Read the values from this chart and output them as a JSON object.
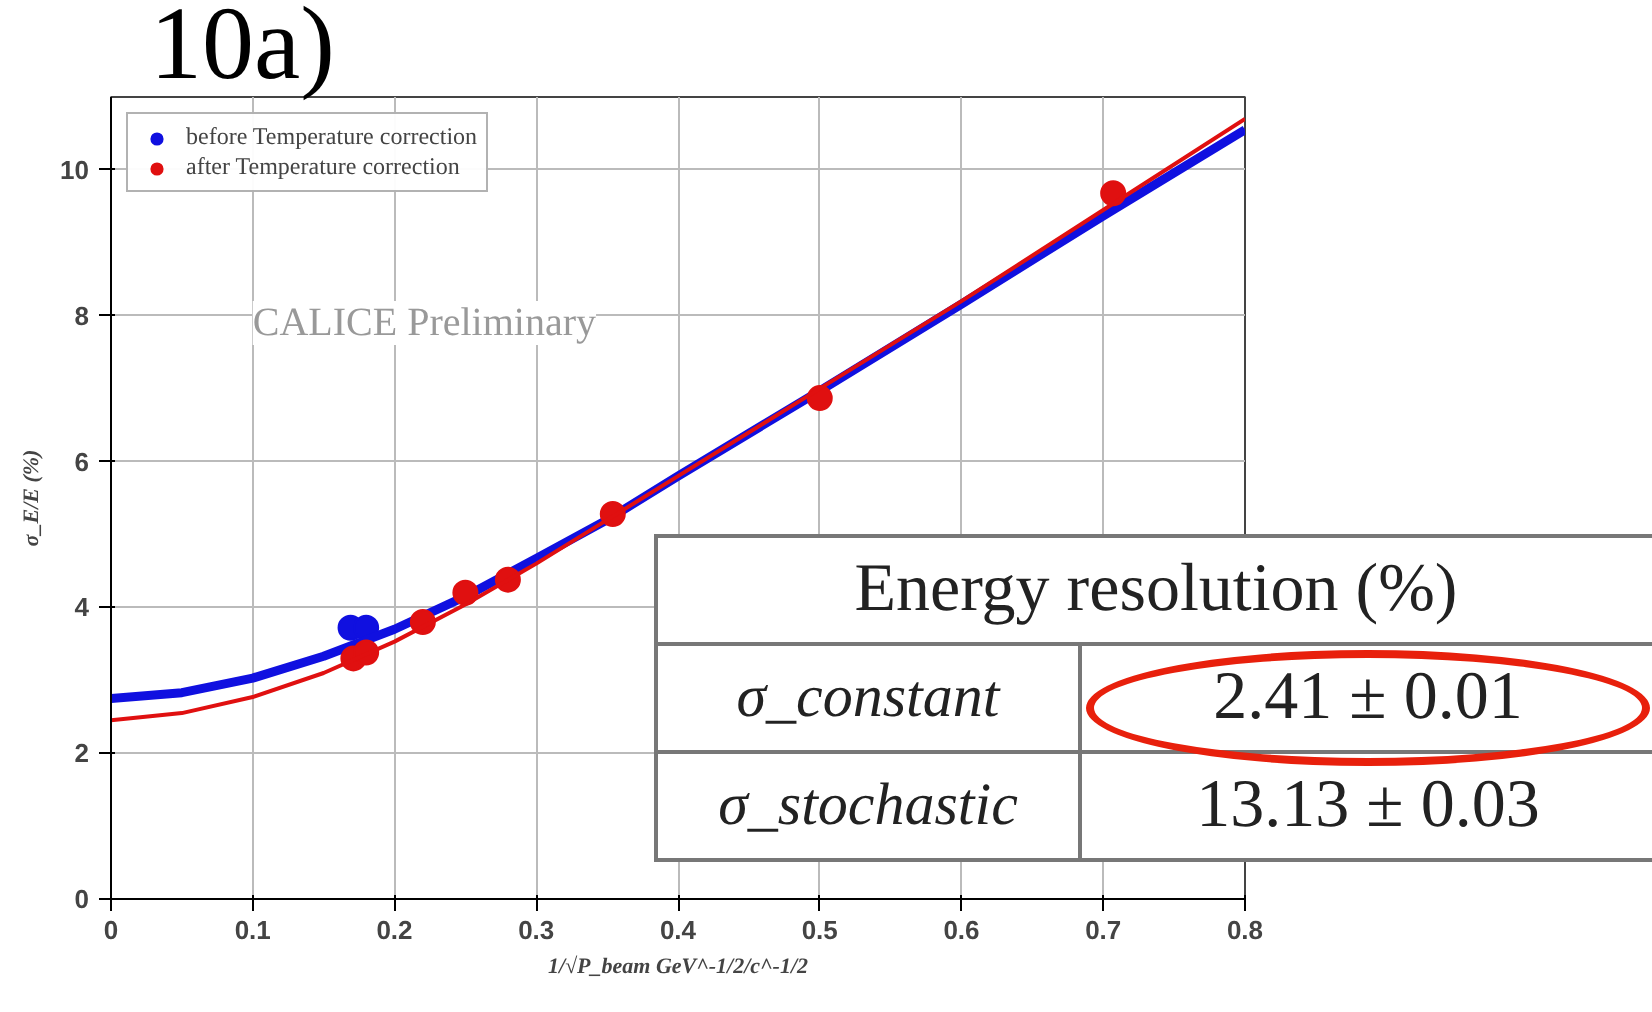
{
  "chart_data": {
    "type": "scatter",
    "xlabel": "1/√P_beam GeV^-1/2/c^-1/2",
    "ylabel": "σ_E/E (%)",
    "xlim": [
      0,
      0.8
    ],
    "ylim": [
      0,
      11
    ],
    "xticks": [
      0,
      0.1,
      0.2,
      0.3,
      0.4,
      0.5,
      0.6,
      0.7,
      0.8
    ],
    "yticks": [
      0,
      2,
      4,
      6,
      8,
      10
    ],
    "grid": true,
    "legend": "top left",
    "marker": "circle",
    "series": [
      {
        "name": "before Temperature correction",
        "color": "#1010e0",
        "x": [
          0.169,
          0.18
        ],
        "values": [
          3.72,
          3.72
        ]
      },
      {
        "type": "line",
        "marker": "none",
        "color": "#1010e0",
        "x": [
          0,
          0.05,
          0.1,
          0.15,
          0.2,
          0.25,
          0.3,
          0.35,
          0.4,
          0.5,
          0.6,
          0.7,
          0.8
        ],
        "values": [
          2.75,
          2.83,
          3.03,
          3.33,
          3.7,
          4.15,
          4.67,
          5.2,
          5.8,
          6.97,
          8.16,
          9.37,
          10.55
        ]
      },
      {
        "name": "after Temperature correction",
        "color": "#e01010",
        "x": [
          0.171,
          0.18,
          0.22,
          0.25,
          0.28,
          0.354,
          0.5,
          0.707
        ],
        "values": [
          3.3,
          3.38,
          3.8,
          4.2,
          4.38,
          5.28,
          6.87,
          9.68
        ]
      },
      {
        "type": "line",
        "marker": "none",
        "color": "#e01010",
        "x": [
          0,
          0.05,
          0.1,
          0.15,
          0.2,
          0.25,
          0.3,
          0.35,
          0.4,
          0.5,
          0.6,
          0.7,
          0.8
        ],
        "values": [
          2.45,
          2.55,
          2.77,
          3.1,
          3.53,
          4.04,
          4.6,
          5.2,
          5.8,
          7.0,
          8.2,
          9.45,
          10.7
        ]
      }
    ],
    "annotations": [
      "10a)",
      "CALICE Preliminary",
      "Energy resolution (%)",
      "σ_constant",
      "2.41 ± 0.01",
      "σ_stochastic",
      "13.13 ± 0.03"
    ]
  }
}
